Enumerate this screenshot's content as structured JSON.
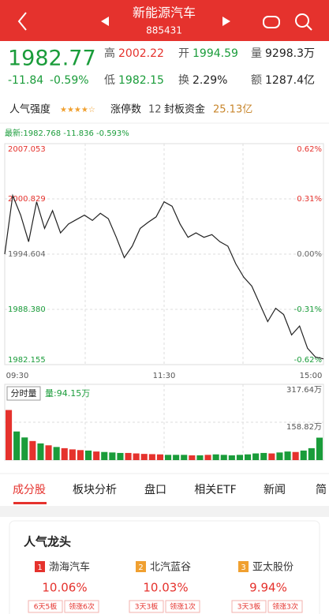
{
  "header": {
    "title": "新能源汽车",
    "code": "885431"
  },
  "quote": {
    "price": "1982.77",
    "change": "-11.84",
    "change_pct": "-0.59%",
    "fields": [
      {
        "label": "高",
        "value": "2002.22",
        "color": "#e5322d"
      },
      {
        "label": "开",
        "value": "1994.59",
        "color": "#1a9c3a"
      },
      {
        "label": "量",
        "value": "9298.3万",
        "color": "#222222"
      },
      {
        "label": "低",
        "value": "1982.15",
        "color": "#1a9c3a"
      },
      {
        "label": "换",
        "value": "2.29%",
        "color": "#222222"
      },
      {
        "label": "额",
        "value": "1287.4亿",
        "color": "#222222"
      }
    ]
  },
  "stats": {
    "popularity_label": "人气强度",
    "limit_up_label": "涨停数",
    "limit_up": "12",
    "sealed_label": "封板资金",
    "sealed": "25.13亿"
  },
  "chart_data": [
    {
      "type": "line",
      "title": "最新:1982.768  -11.836  -0.593%",
      "color": "#222222",
      "up_color": "#e5322d",
      "down_color": "#1a9c3a",
      "x": [
        0,
        6,
        12,
        18,
        24,
        30,
        36,
        42,
        48,
        54,
        60,
        66,
        72,
        78,
        84,
        90,
        96,
        102,
        108,
        114,
        120,
        126,
        132,
        138,
        144,
        150,
        156,
        162,
        168,
        174,
        180,
        186,
        192,
        198,
        204,
        210,
        216,
        222,
        228,
        234,
        240
      ],
      "values": [
        1994.6,
        2001.2,
        1999,
        1996,
        2000.5,
        1997.5,
        1999.5,
        1997,
        1998,
        1998.5,
        1999,
        1998.4,
        1999.2,
        1998.6,
        1996.5,
        1994.2,
        1995.5,
        1997.5,
        1998.2,
        1998.8,
        2000.5,
        2000,
        1998,
        1996.5,
        1997,
        1996.5,
        1996.8,
        1996,
        1995.5,
        1993.5,
        1992,
        1991,
        1989,
        1987,
        1988.5,
        1987.8,
        1985.5,
        1986.5,
        1984,
        1983,
        1982.8
      ],
      "xlim": [
        0,
        240
      ],
      "xticks": [
        {
          "value": 0,
          "label": "09:30"
        },
        {
          "value": 120,
          "label": "11:30"
        },
        {
          "value": 240,
          "label": "15:00"
        }
      ],
      "ylim": [
        1982.155,
        2007.053
      ],
      "yticks": [
        2007.053,
        2000.829,
        1994.604,
        {
          "value": 1988.38,
          "label": "1988.380"
        },
        1982.155
      ],
      "y2lim": [
        -0.62,
        0.62
      ],
      "y2ticks": [
        {
          "value": 0.62,
          "label": "0.62%"
        },
        {
          "value": 0.31,
          "label": "0.31%"
        },
        {
          "value": 0,
          "label": "0.00%"
        },
        {
          "value": -0.31,
          "label": "-0.31%"
        },
        {
          "value": -0.62,
          "label": "-0.62%"
        }
      ],
      "grid": true
    },
    {
      "type": "bar",
      "title": "分时量",
      "subtitle": "量:94.15万",
      "ylim": [
        0,
        317.64
      ],
      "yticks": [
        {
          "value": 317.64,
          "label": "317.64万"
        },
        {
          "value": 158.82,
          "label": "158.82万"
        }
      ],
      "values": [
        210,
        120,
        95,
        80,
        70,
        62,
        55,
        50,
        45,
        42,
        40,
        36,
        34,
        32,
        30,
        30,
        28,
        26,
        25,
        24,
        22,
        22,
        22,
        20,
        20,
        22,
        24,
        22,
        20,
        22,
        24,
        28,
        30,
        28,
        32,
        36,
        34,
        40,
        50,
        94.15
      ]
    }
  ],
  "tabs": [
    "成分股",
    "板块分析",
    "盘口",
    "相关ETF",
    "新闻",
    "简"
  ],
  "leaders": {
    "title": "人气龙头",
    "items": [
      {
        "rank": "1",
        "name": "渤海汽车",
        "pct": "10.06%",
        "tags": [
          "6天5板",
          "领涨6次"
        ]
      },
      {
        "rank": "2",
        "name": "北汽蓝谷",
        "pct": "10.03%",
        "tags": [
          "3天3板",
          "领涨1次"
        ]
      },
      {
        "rank": "3",
        "name": "亚太股份",
        "pct": "9.94%",
        "tags": [
          "3天3板",
          "领涨3次"
        ]
      }
    ]
  }
}
